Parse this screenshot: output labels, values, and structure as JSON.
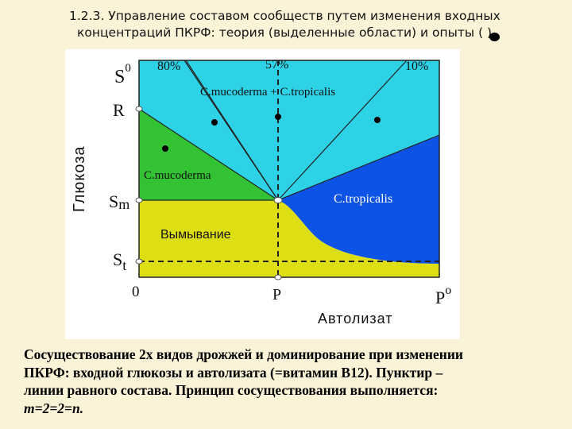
{
  "slide": {
    "title_line1": "1.2.3.   Управление составом сообществ путем изменения входных",
    "title_line2": "концентраций ПКРФ: теория (выделенные области) и опыты (    )",
    "title_marker_icon": "filled-circle-icon"
  },
  "diagram": {
    "y_axis_label": "Глюкоза",
    "x_axis_label": "Автолизат",
    "y_ticks": {
      "s0": "S",
      "s0_sup": "0",
      "r": "R",
      "sm": "S",
      "sm_sub": "m",
      "st": "S",
      "st_sub": "t"
    },
    "x_ticks": {
      "origin": "0",
      "p": "P",
      "p0": "P",
      "p0_sup": "o"
    },
    "top_percents": [
      "80%",
      "57%",
      "10%"
    ],
    "regions": {
      "mixed": "C.mucoderma + C.tropicalis",
      "mucoderma": "C.mucoderma",
      "tropicalis": "C.tropicalis",
      "washout": "Вымывание"
    },
    "colors": {
      "mixed": "#2ed2e6",
      "mucoderma": "#33c233",
      "tropicalis": "#0d53e6",
      "washout": "#dede14",
      "lines": "#222222",
      "marker_fill": "#ffffff"
    }
  },
  "caption": {
    "line1": "Сосуществование 2х видов дрожжей и доминирование при изменении",
    "line2": "ПКРФ: входной глюкозы и автолизата (=витамин В12). Пунктир –",
    "line3": "линии равного состава. Принцип сосуществования выполняется:",
    "line4": "m=2=2=n."
  }
}
